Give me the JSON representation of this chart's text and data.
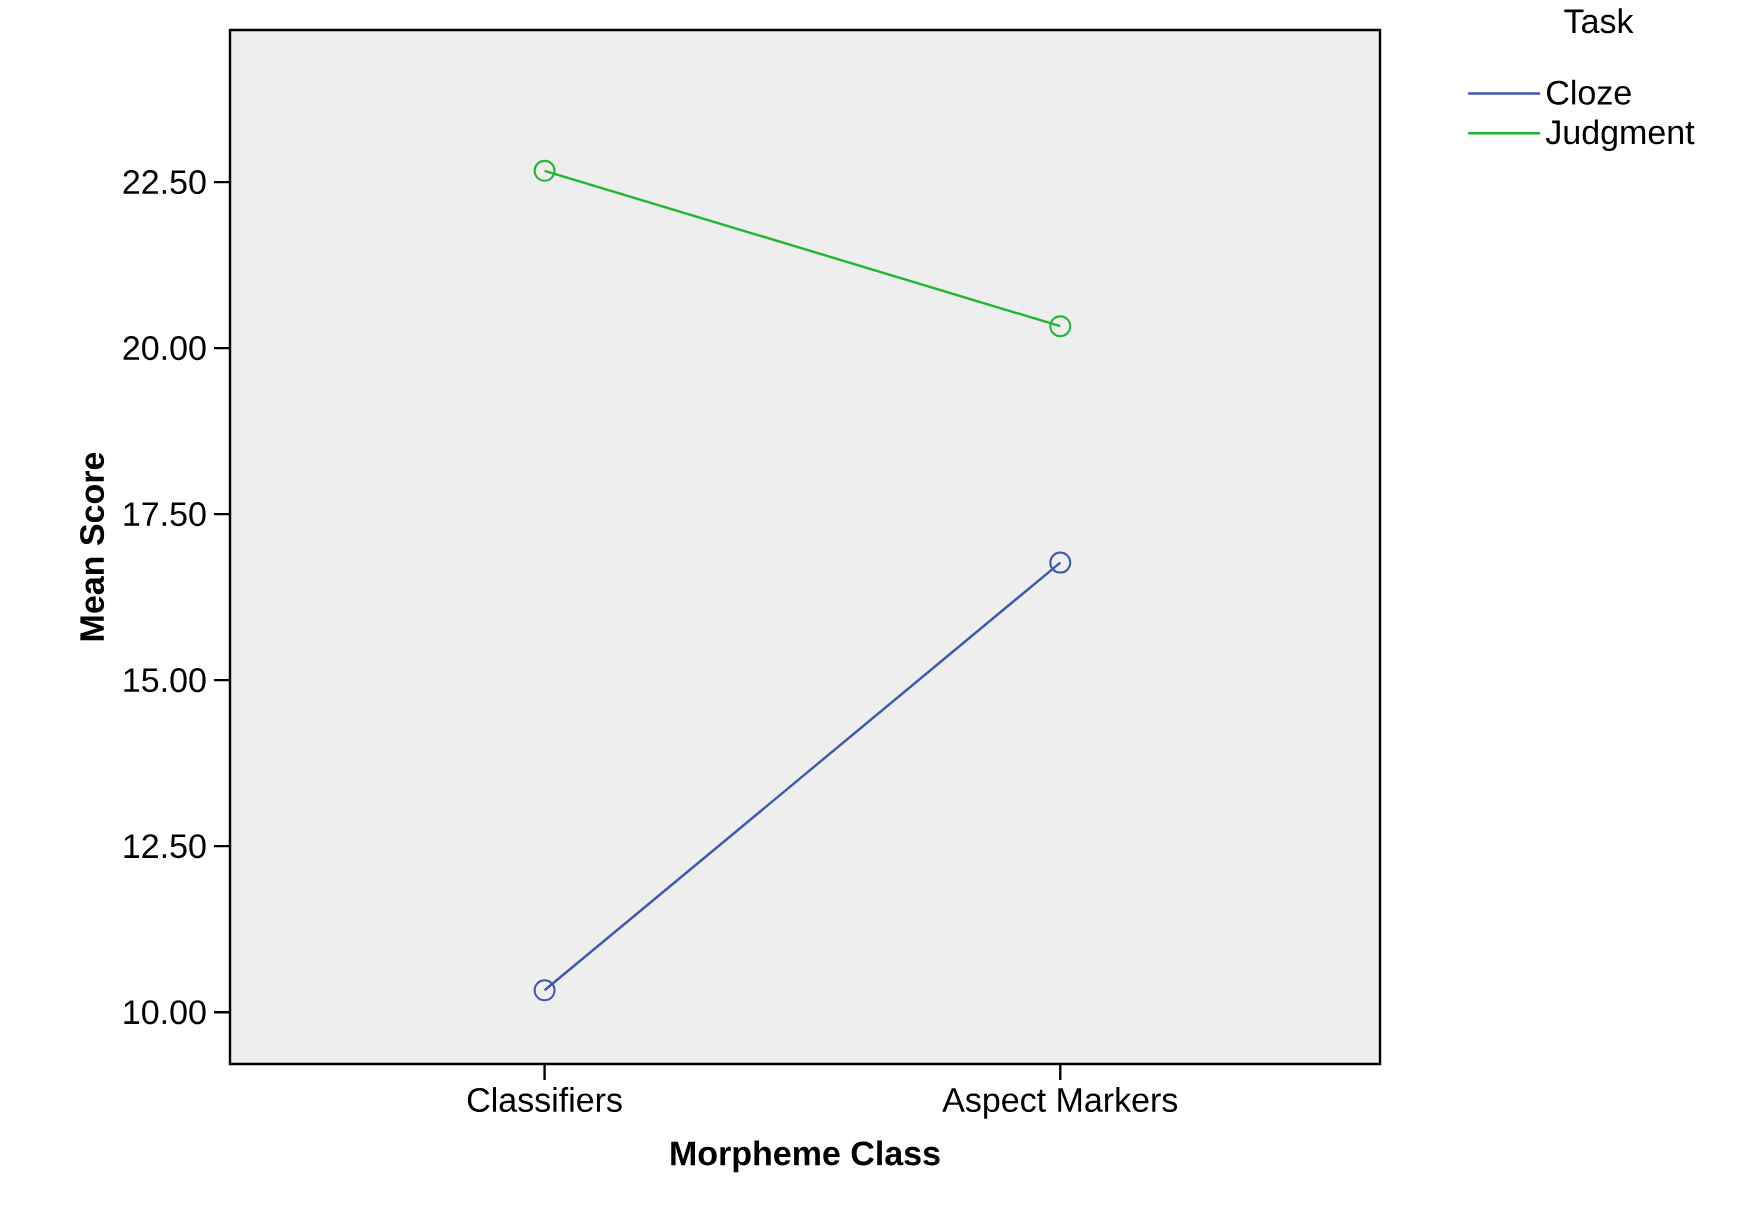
{
  "chart_data": {
    "type": "line",
    "xlabel": "Morpheme Class",
    "ylabel": "Mean Score",
    "legend_title": "Task",
    "categories": [
      "Classifiers",
      "Aspect Markers"
    ],
    "series": [
      {
        "name": "Cloze",
        "color": "#3e58ac",
        "values": [
          10.33,
          16.77
        ]
      },
      {
        "name": "Judgment",
        "color": "#21b530",
        "values": [
          22.67,
          20.33
        ]
      }
    ],
    "ylim": [
      9.22,
      24.79
    ],
    "yticks": [
      {
        "value": 10,
        "label": "10.00"
      },
      {
        "value": 12.5,
        "label": "12.50"
      },
      {
        "value": 15,
        "label": "15.00"
      },
      {
        "value": 17.5,
        "label": "17.50"
      },
      {
        "value": 20,
        "label": "20.00"
      },
      {
        "value": 22.5,
        "label": "22.50"
      }
    ],
    "legend": "top right",
    "marker": "circle",
    "grid": false
  }
}
